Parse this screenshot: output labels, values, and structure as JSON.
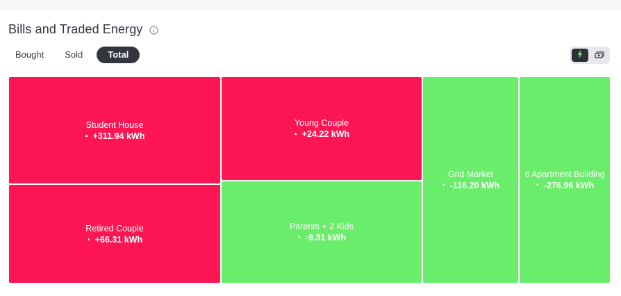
{
  "title": "Bills and Traded Energy",
  "tabs": [
    {
      "label": "Bought",
      "active": false
    },
    {
      "label": "Sold",
      "active": false
    },
    {
      "label": "Total",
      "active": true
    }
  ],
  "view_toggle": {
    "options": [
      {
        "icon": "lightning-icon",
        "active": true
      },
      {
        "icon": "money-icon",
        "active": false
      }
    ]
  },
  "colors": {
    "positive": "#fe1654",
    "negative": "#6aed6a",
    "accent": "#34363f"
  },
  "treemap": [
    {
      "name": "Student House",
      "value": "+311.94 kWh",
      "direction": "up"
    },
    {
      "name": "Retired Couple",
      "value": "+66.31 kWh",
      "direction": "up"
    },
    {
      "name": "Young Couple",
      "value": "+24.22 kWh",
      "direction": "up"
    },
    {
      "name": "Parents + 2 Kids",
      "value": "-9.31 kWh",
      "direction": "down"
    },
    {
      "name": "Grid Market",
      "value": "-116.20 kWh",
      "direction": "down"
    },
    {
      "name": "6 Apartment Building",
      "value": "-276.96 kWh",
      "direction": "down"
    }
  ]
}
